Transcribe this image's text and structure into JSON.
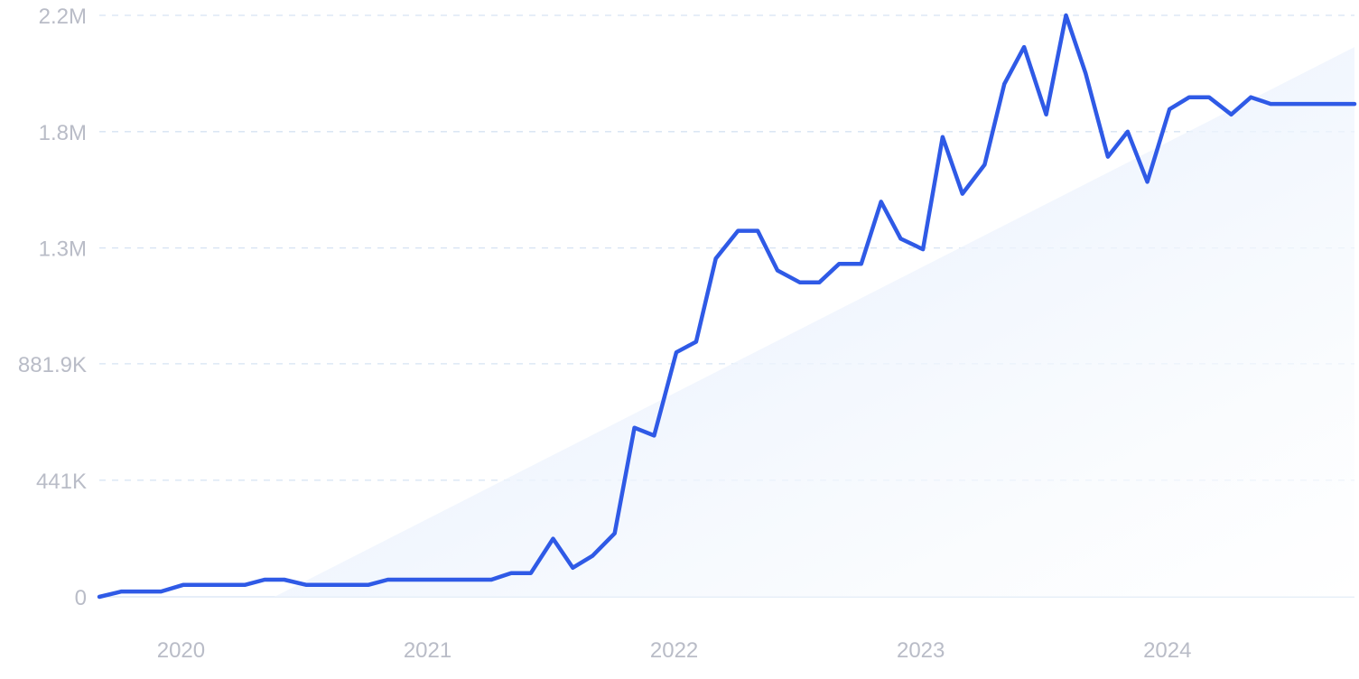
{
  "colors": {
    "line": "#2f5ae6",
    "trend_fill_light": "#ffffff",
    "trend_fill_dark": "#dce9fb",
    "grid": "#d6e3f3",
    "tick_text": "#b9bcc7"
  },
  "chart_data": {
    "type": "line",
    "y_axis": {
      "ticks": [
        {
          "value": 0,
          "label": "0"
        },
        {
          "value": 441000,
          "label": "441K"
        },
        {
          "value": 881900,
          "label": "881.9K"
        },
        {
          "value": 1320000,
          "label": "1.3M"
        },
        {
          "value": 1760000,
          "label": "1.8M"
        },
        {
          "value": 2200000,
          "label": "2.2M"
        }
      ],
      "ylim": [
        0,
        2200000
      ]
    },
    "x_axis": {
      "ticks": [
        {
          "value": 2020.0,
          "label": "2020"
        },
        {
          "value": 2021.0,
          "label": "2021"
        },
        {
          "value": 2022.0,
          "label": "2022"
        },
        {
          "value": 2023.0,
          "label": "2023"
        },
        {
          "value": 2024.0,
          "label": "2024"
        }
      ],
      "xlim": [
        2019.83,
        2024.92
      ]
    },
    "grid": true,
    "legend": "none",
    "trend": {
      "type": "area",
      "points": [
        {
          "x": 2020.54,
          "y": 0
        },
        {
          "x": 2024.92,
          "y": 2080000
        }
      ]
    },
    "series": [
      {
        "x": [
          2019.83,
          2019.92,
          2020.0,
          2020.08,
          2020.17,
          2020.25,
          2020.33,
          2020.42,
          2020.5,
          2020.58,
          2020.67,
          2020.75,
          2020.83,
          2020.92,
          2021.0,
          2021.08,
          2021.17,
          2021.25,
          2021.33,
          2021.42,
          2021.5,
          2021.58,
          2021.67,
          2021.75,
          2021.83,
          2021.92,
          2022.0,
          2022.08,
          2022.17,
          2022.25,
          2022.33,
          2022.42,
          2022.5,
          2022.58,
          2022.67,
          2022.75,
          2022.83,
          2022.92,
          2023.0,
          2023.08,
          2023.17,
          2023.25,
          2023.33,
          2023.42,
          2023.5,
          2023.58,
          2023.67,
          2023.75,
          2023.83,
          2023.92,
          2024.0,
          2024.08,
          2024.17,
          2024.25,
          2024.33,
          2024.42,
          2024.5,
          2024.58,
          2024.67,
          2024.75,
          2024.83,
          2024.92
        ],
        "y": [
          0,
          20000,
          20000,
          20000,
          45000,
          45000,
          45000,
          45000,
          65000,
          65000,
          45000,
          45000,
          45000,
          45000,
          65000,
          65000,
          65000,
          65000,
          65000,
          65000,
          90000,
          90000,
          220000,
          110000,
          155000,
          240000,
          640000,
          610000,
          925000,
          965000,
          1280000,
          1385000,
          1385000,
          1235000,
          1190000,
          1190000,
          1260000,
          1260000,
          1495000,
          1355000,
          1315000,
          1740000,
          1525000,
          1635000,
          1940000,
          2080000,
          1825000,
          2200000,
          1980000,
          1665000,
          1760000,
          1570000,
          1845000,
          1890000,
          1890000,
          1825000,
          1890000,
          1865000,
          1865000,
          1865000,
          1865000,
          1865000
        ]
      }
    ]
  }
}
